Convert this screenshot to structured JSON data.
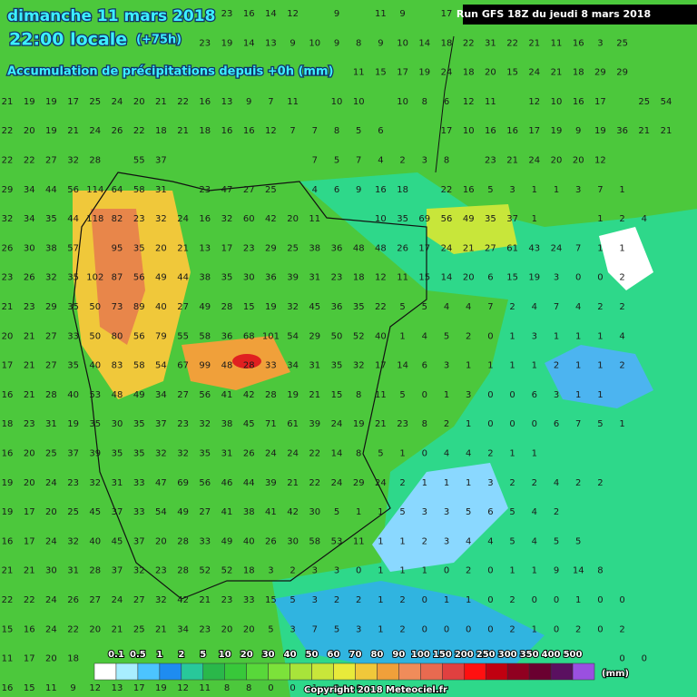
{
  "header": {
    "date": "dimanche 11 mars 2018",
    "time": "22:00 locale",
    "lead": "(+75h)",
    "subtitle": "Accumulation de précipitations depuis +0h (mm)"
  },
  "run_label": "Run GFS 18Z du jeudi 8 mars 2018",
  "copyright": "Copyright 2018 Meteociel.fr",
  "legend": {
    "unit": "(mm)",
    "labels": [
      0.1,
      0.5,
      1,
      2,
      5,
      10,
      20,
      30,
      40,
      50,
      60,
      70,
      80,
      90,
      100,
      150,
      200,
      250,
      300,
      350,
      400,
      500
    ],
    "colors": [
      "#ffffff",
      "#a8eeff",
      "#4cc4ff",
      "#1e8cf0",
      "#28c89a",
      "#2ab84a",
      "#38c83a",
      "#58d83a",
      "#7ce23a",
      "#a8e43a",
      "#c8e63a",
      "#e8ea3a",
      "#f0c83a",
      "#f0a03a",
      "#f08c5a",
      "#e86a50",
      "#e04040",
      "#ff1010",
      "#c00010",
      "#900020",
      "#6a0030",
      "#5a1060",
      "#9a50e0"
    ]
  },
  "grid": {
    "rows": [
      [
        null,
        null,
        null,
        null,
        null,
        null,
        null,
        null,
        null,
        null,
        23,
        16,
        14,
        12,
        null,
        9,
        null,
        11,
        9,
        null,
        17,
        null,
        null,
        null,
        null,
        null,
        null,
        null,
        null,
        null,
        null,
        null
      ],
      [
        null,
        null,
        null,
        null,
        null,
        null,
        null,
        null,
        null,
        23,
        19,
        14,
        13,
        9,
        10,
        9,
        8,
        9,
        10,
        14,
        18,
        22,
        31,
        22,
        21,
        11,
        16,
        3,
        25,
        null,
        null,
        null
      ],
      [
        null,
        null,
        null,
        null,
        null,
        null,
        null,
        null,
        null,
        null,
        null,
        null,
        null,
        null,
        null,
        null,
        11,
        15,
        17,
        19,
        24,
        18,
        20,
        15,
        24,
        21,
        18,
        29,
        29,
        null,
        null,
        null
      ],
      [
        21,
        19,
        19,
        17,
        25,
        24,
        20,
        21,
        22,
        16,
        13,
        9,
        7,
        11,
        null,
        10,
        10,
        null,
        10,
        8,
        6,
        12,
        11,
        null,
        12,
        10,
        16,
        17,
        null,
        25,
        54,
        null
      ],
      [
        22,
        20,
        19,
        21,
        24,
        26,
        22,
        18,
        21,
        18,
        16,
        16,
        12,
        7,
        7,
        8,
        5,
        6,
        null,
        null,
        17,
        10,
        16,
        16,
        17,
        19,
        9,
        19,
        36,
        21,
        21,
        null
      ],
      [
        22,
        22,
        27,
        32,
        28,
        null,
        55,
        37,
        null,
        null,
        null,
        null,
        null,
        null,
        7,
        5,
        7,
        4,
        2,
        3,
        8,
        null,
        23,
        21,
        24,
        20,
        20,
        12,
        null,
        null,
        null,
        null
      ],
      [
        29,
        34,
        44,
        56,
        114,
        64,
        58,
        31,
        null,
        23,
        47,
        27,
        25,
        null,
        4,
        6,
        9,
        16,
        18,
        null,
        22,
        16,
        5,
        3,
        1,
        1,
        3,
        7,
        1,
        null,
        null,
        null
      ],
      [
        32,
        34,
        35,
        44,
        118,
        82,
        23,
        32,
        24,
        16,
        32,
        60,
        42,
        20,
        11,
        null,
        null,
        10,
        35,
        69,
        56,
        49,
        35,
        37,
        1,
        null,
        null,
        1,
        2,
        4,
        null,
        null
      ],
      [
        26,
        30,
        38,
        57,
        null,
        95,
        35,
        20,
        21,
        13,
        17,
        23,
        29,
        25,
        38,
        36,
        48,
        48,
        26,
        17,
        24,
        21,
        27,
        61,
        43,
        24,
        7,
        1,
        1,
        null,
        null,
        null
      ],
      [
        23,
        26,
        32,
        35,
        102,
        87,
        56,
        49,
        44,
        38,
        35,
        30,
        36,
        39,
        31,
        23,
        18,
        12,
        11,
        15,
        14,
        20,
        6,
        15,
        19,
        3,
        0,
        0,
        2,
        null,
        null,
        null
      ],
      [
        21,
        23,
        29,
        35,
        50,
        73,
        89,
        40,
        27,
        49,
        28,
        15,
        19,
        32,
        45,
        36,
        35,
        22,
        5,
        5,
        4,
        4,
        7,
        2,
        4,
        7,
        4,
        2,
        2,
        null,
        null,
        null
      ],
      [
        20,
        21,
        27,
        33,
        50,
        80,
        56,
        79,
        55,
        58,
        36,
        68,
        101,
        54,
        29,
        50,
        52,
        40,
        1,
        4,
        5,
        2,
        0,
        1,
        3,
        1,
        1,
        1,
        4,
        null,
        null,
        null
      ],
      [
        17,
        21,
        27,
        35,
        40,
        83,
        58,
        54,
        67,
        99,
        48,
        28,
        33,
        34,
        31,
        35,
        32,
        17,
        14,
        6,
        3,
        1,
        1,
        1,
        1,
        2,
        1,
        1,
        2,
        null,
        null,
        null
      ],
      [
        16,
        21,
        28,
        40,
        53,
        48,
        49,
        34,
        27,
        56,
        41,
        42,
        28,
        19,
        21,
        15,
        8,
        11,
        5,
        0,
        1,
        3,
        0,
        0,
        6,
        3,
        1,
        1,
        null,
        null,
        null,
        null
      ],
      [
        18,
        23,
        31,
        19,
        35,
        30,
        35,
        37,
        23,
        32,
        38,
        45,
        71,
        61,
        39,
        24,
        19,
        21,
        23,
        8,
        2,
        1,
        0,
        0,
        0,
        6,
        7,
        5,
        1,
        null,
        null,
        null
      ],
      [
        16,
        20,
        25,
        37,
        39,
        35,
        35,
        32,
        32,
        35,
        31,
        26,
        24,
        24,
        22,
        14,
        8,
        5,
        1,
        0,
        4,
        4,
        2,
        1,
        1,
        null,
        null,
        null,
        null,
        null,
        null,
        null
      ],
      [
        19,
        20,
        24,
        23,
        32,
        31,
        33,
        47,
        69,
        56,
        46,
        44,
        39,
        21,
        22,
        24,
        29,
        24,
        2,
        1,
        1,
        1,
        3,
        2,
        2,
        4,
        2,
        2,
        null,
        null,
        null,
        null
      ],
      [
        19,
        17,
        20,
        25,
        45,
        37,
        33,
        54,
        49,
        27,
        41,
        38,
        41,
        42,
        30,
        5,
        1,
        1,
        5,
        3,
        3,
        5,
        6,
        5,
        4,
        2,
        null,
        null,
        null,
        null,
        null,
        null
      ],
      [
        16,
        17,
        24,
        32,
        40,
        45,
        37,
        20,
        28,
        33,
        49,
        40,
        26,
        30,
        58,
        53,
        11,
        1,
        1,
        2,
        3,
        4,
        4,
        5,
        4,
        5,
        5,
        null,
        null,
        null,
        null,
        null
      ],
      [
        21,
        21,
        30,
        31,
        28,
        37,
        32,
        23,
        28,
        52,
        52,
        18,
        3,
        2,
        3,
        3,
        0,
        1,
        1,
        1,
        0,
        2,
        0,
        1,
        1,
        9,
        14,
        8,
        null,
        null,
        null,
        null
      ],
      [
        22,
        22,
        24,
        26,
        27,
        24,
        27,
        32,
        42,
        21,
        23,
        33,
        15,
        5,
        3,
        2,
        2,
        1,
        2,
        0,
        1,
        1,
        0,
        2,
        0,
        0,
        1,
        0,
        0,
        null,
        null,
        null
      ],
      [
        15,
        16,
        24,
        22,
        20,
        21,
        25,
        21,
        34,
        23,
        20,
        20,
        5,
        3,
        7,
        5,
        3,
        1,
        2,
        0,
        0,
        0,
        0,
        2,
        1,
        0,
        2,
        0,
        2,
        null,
        null,
        null
      ],
      [
        11,
        17,
        20,
        18,
        null,
        null,
        null,
        null,
        null,
        null,
        null,
        null,
        null,
        null,
        null,
        null,
        null,
        null,
        null,
        null,
        null,
        null,
        null,
        null,
        null,
        null,
        null,
        null,
        0,
        0,
        null,
        null
      ],
      [
        16,
        15,
        11,
        9,
        12,
        13,
        17,
        19,
        12,
        11,
        8,
        8,
        0,
        0,
        1,
        0,
        0,
        null,
        null,
        null,
        null,
        null,
        null,
        null,
        null,
        null,
        null,
        null,
        null,
        null,
        null,
        null
      ]
    ]
  }
}
